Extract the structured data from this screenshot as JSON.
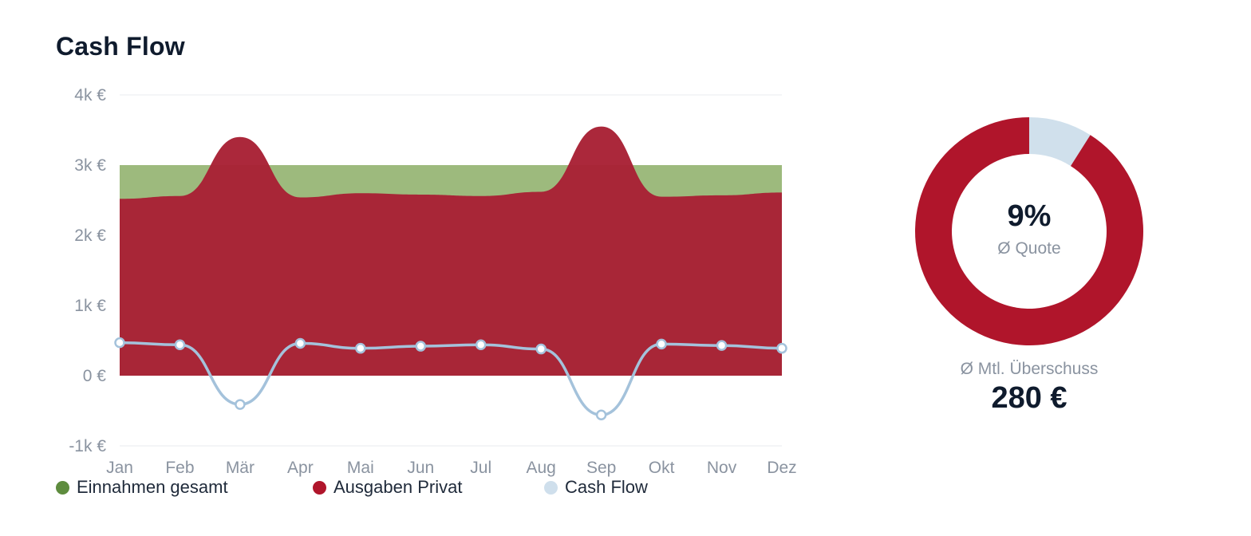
{
  "title": "Cash Flow",
  "chart_data": {
    "type": "area",
    "categories": [
      "Jan",
      "Feb",
      "Mär",
      "Apr",
      "Mai",
      "Jun",
      "Jul",
      "Aug",
      "Sep",
      "Okt",
      "Nov",
      "Dez"
    ],
    "y_ticks": [
      "4k €",
      "3k €",
      "2k €",
      "1k €",
      "0 €",
      "-1k €"
    ],
    "ylim": [
      -1000,
      4000
    ],
    "grid": true,
    "legend_position": "bottom-left",
    "series": [
      {
        "name": "Einnahmen gesamt",
        "type": "area",
        "color": "#9dba7d",
        "values": [
          3000,
          3000,
          3000,
          3000,
          3000,
          3000,
          3000,
          3000,
          3000,
          3000,
          3000,
          3000
        ]
      },
      {
        "name": "Ausgaben Privat",
        "type": "area",
        "color": "#a82135",
        "values": [
          2520,
          2560,
          3400,
          2540,
          2600,
          2580,
          2560,
          2620,
          3550,
          2550,
          2570,
          2610
        ]
      },
      {
        "name": "Cash Flow",
        "type": "line",
        "color": "#a4c2db",
        "values": [
          470,
          440,
          -410,
          460,
          390,
          420,
          440,
          380,
          -560,
          450,
          430,
          390
        ]
      }
    ]
  },
  "legend": [
    {
      "label": "Einnahmen gesamt",
      "color": "#5e8c3e"
    },
    {
      "label": "Ausgaben Privat",
      "color": "#b0152b"
    },
    {
      "label": "Cash Flow",
      "color": "#cfdfec"
    }
  ],
  "donut": {
    "percent_label": "9%",
    "sub_label": "Ø Quote",
    "fraction": 0.09,
    "colors": {
      "main": "#b0152b",
      "rest": "#d0e0ec"
    }
  },
  "kpi": {
    "label": "Ø Mtl. Überschuss",
    "value": "280 €"
  }
}
